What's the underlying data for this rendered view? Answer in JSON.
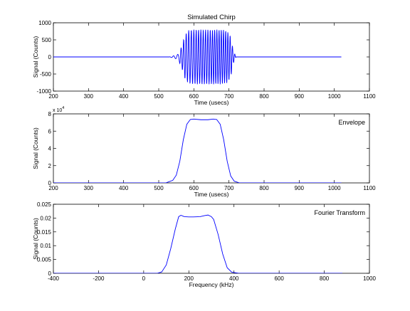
{
  "figure": {
    "background": "#ffffff",
    "line_color": "#0000ff",
    "axis_color": "#000000"
  },
  "chart_data": [
    {
      "type": "line",
      "title": "Simulated Chirp",
      "annotation": "",
      "exponent_label": "",
      "xlabel": "Time (usecs)",
      "ylabel": "Signal (Counts)",
      "xlim": [
        200,
        1100
      ],
      "ylim": [
        -1000,
        1000
      ],
      "xticks": [
        200,
        300,
        400,
        500,
        600,
        700,
        800,
        900,
        1000,
        1100
      ],
      "yticks": [
        -1000,
        -500,
        0,
        500,
        1000
      ],
      "ytick_labels": [
        "-1000",
        "-500",
        "0",
        "500",
        "1000"
      ],
      "signal": {
        "kind": "oscillation",
        "x_start": 200,
        "x_end": 1020,
        "envelope_x": [
          200,
          530,
          545,
          555,
          565,
          575,
          585,
          600,
          620,
          650,
          680,
          695,
          705,
          712,
          720,
          1020
        ],
        "envelope_y": [
          0,
          0,
          40,
          80,
          300,
          650,
          780,
          800,
          800,
          800,
          800,
          760,
          600,
          200,
          0,
          0
        ],
        "phase_x": [
          530,
          560,
          600,
          650,
          700,
          720
        ],
        "phase_cycles": [
          0,
          2.5,
          8,
          15.5,
          23.5,
          26.5
        ]
      }
    },
    {
      "type": "line",
      "title": "",
      "annotation": "Envelope",
      "exponent_label": "x 10",
      "exponent_power": "4",
      "xlabel": "Time (usecs)",
      "ylabel": "Signal (Counts)",
      "xlim": [
        200,
        1100
      ],
      "ylim": [
        0,
        80000
      ],
      "xticks": [
        200,
        300,
        400,
        500,
        600,
        700,
        800,
        900,
        1000,
        1100
      ],
      "yticks": [
        0,
        20000,
        40000,
        60000,
        80000
      ],
      "ytick_labels": [
        "0",
        "2",
        "4",
        "6",
        "8"
      ],
      "series": [
        {
          "x": [
            200,
            520,
            540,
            550,
            560,
            570,
            580,
            590,
            600,
            620,
            640,
            655,
            665,
            675,
            685,
            695,
            705,
            715,
            730,
            1020
          ],
          "y": [
            0,
            0,
            3000,
            9000,
            25000,
            50000,
            68000,
            73500,
            74000,
            73200,
            73200,
            74000,
            73500,
            68000,
            50000,
            25000,
            8000,
            2000,
            0,
            0
          ]
        }
      ]
    },
    {
      "type": "line",
      "title": "",
      "annotation": "Fourier Transform",
      "exponent_label": "",
      "xlabel": "Frequency (kHz)",
      "ylabel": "Signal (Counts)",
      "xlim": [
        -400,
        1000
      ],
      "ylim": [
        0,
        0.025
      ],
      "xticks": [
        -400,
        -200,
        0,
        200,
        400,
        600,
        800,
        1000
      ],
      "yticks": [
        0,
        0.005,
        0.01,
        0.015,
        0.02,
        0.025
      ],
      "ytick_labels": [
        "0",
        "0.005",
        "0.01",
        "0.015",
        "0.02",
        "0.025"
      ],
      "series": [
        {
          "x": [
            -400,
            60,
            80,
            100,
            120,
            140,
            155,
            165,
            180,
            200,
            220,
            250,
            270,
            285,
            300,
            310,
            330,
            350,
            370,
            390,
            420,
            880
          ],
          "y": [
            0,
            0,
            0.0005,
            0.003,
            0.009,
            0.016,
            0.0205,
            0.021,
            0.0205,
            0.0204,
            0.0204,
            0.0205,
            0.0209,
            0.0211,
            0.0205,
            0.0195,
            0.014,
            0.007,
            0.002,
            0.0004,
            0,
            0
          ]
        }
      ]
    }
  ]
}
